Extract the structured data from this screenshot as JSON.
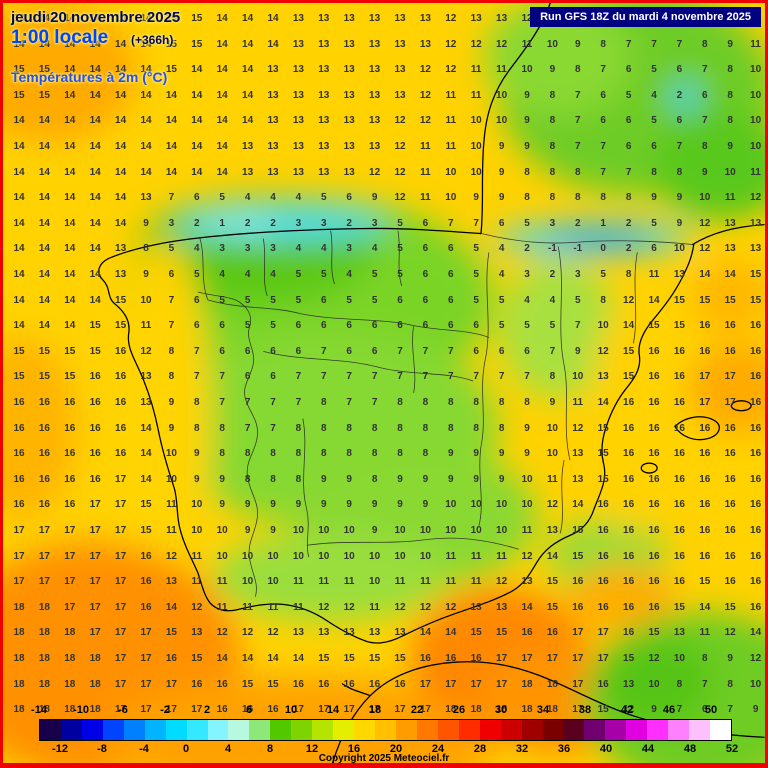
{
  "header": {
    "date_line": "jeudi 20 novembre 2025",
    "time_line": "1:00 locale",
    "forecast_offset": "(+366h)",
    "variable_label": "Températures à 2m (°C)",
    "run_label": "Run GFS 18Z du mardi 4 novembre 2025"
  },
  "footer": {
    "copyright": "Copyright 2025 Meteociel.fr"
  },
  "colors": {
    "frame_border": "#f00000",
    "run_box_bg": "#000080",
    "run_box_text": "#ffffff",
    "base_field_yellow": "#ffd200",
    "cold_green": "#52c800",
    "cold_cyan": "#34e8ff",
    "warm_orange": "#ff9c00",
    "number_text": "#333333",
    "title_navy": "#000a50",
    "title_blue": "#0044ff"
  },
  "map": {
    "scale": {
      "min": -14,
      "max": 52,
      "step": 2,
      "segments": [
        "#16004c",
        "#0000a0",
        "#0000e6",
        "#0044ff",
        "#0080ff",
        "#00b4ff",
        "#00dcff",
        "#34e8ff",
        "#84f4ff",
        "#b6f8e0",
        "#8ce878",
        "#52c800",
        "#7ed400",
        "#b4e400",
        "#e6ee00",
        "#ffd800",
        "#ffc000",
        "#ff9c00",
        "#ff7800",
        "#ff5400",
        "#ff2c00",
        "#f00000",
        "#cc0000",
        "#a00000",
        "#7a0000",
        "#5a001e",
        "#700070",
        "#a800a8",
        "#e000e0",
        "#ff30ff",
        "#ff80ff",
        "#ffc0ff",
        "#ffffff"
      ],
      "top_labels": [
        "-14",
        "-10",
        "-6",
        "-2",
        "2",
        "6",
        "10",
        "14",
        "18",
        "22",
        "26",
        "30",
        "34",
        "38",
        "42",
        "46",
        "50"
      ],
      "bottom_labels": [
        "-12",
        "-8",
        "-4",
        "0",
        "4",
        "8",
        "12",
        "16",
        "20",
        "24",
        "28",
        "32",
        "36",
        "40",
        "44",
        "48",
        "52"
      ]
    },
    "grid_rows": [
      "13 14 14 14 14 14 15 15 14 14 14 13 13 13 13 13 13 12 13 13 12 11 10 9 8 8 8 9 10 12",
      "14 14 14 14 14 14 15 15 14 14 14 13 13 13 13 13 13 12 12 12 11 10 9 8 7 7 7 8 9 11",
      "15 15 14 14 14 14 15 14 14 14 13 13 13 13 13 13 12 12 11 11 10 9 8 7 6 5 6 7 8 10",
      "15 15 14 14 14 14 14 14 14 14 13 13 13 13 13 13 12 11 11 10 9 8 7 6 5 4 2 6 8 10",
      "14 14 14 14 14 14 14 14 14 14 13 13 13 13 13 12 12 11 10 10 9 8 7 6 6 5 6 7 8 10",
      "14 14 14 14 14 14 14 14 14 13 13 13 13 13 13 12 11 11 10 9 9 8 7 7 6 6 7 8 9 10",
      "14 14 14 14 14 14 14 14 14 13 13 13 13 13 12 12 11 10 10 9 8 8 8 7 7 8 8 9 10 11",
      "14 14 14 14 14 13 7 6 5 4 4 4 5 6 9 12 11 10 9 9 8 8 8 8 8 9 9 10 11 12",
      "14 14 14 14 14 9 3 2 1 2 2 3 3 2 3 5 6 7 7 6 5 3 2 1 2 5 9 12 13 13",
      "14 14 14 14 13 8 5 4 3 3 3 4 4 3 4 5 6 6 5 4 2 -1 -1 0 2 6 10 12 13 13",
      "14 14 14 14 13 9 6 5 4 4 4 5 5 4 5 5 6 6 5 4 3 2 3 5 8 11 13 14 14 15",
      "14 14 14 14 15 10 7 6 5 5 5 5 6 5 5 6 6 6 5 5 4 4 5 8 12 14 15 15 15 15",
      "14 14 14 15 15 11 7 6 6 5 5 6 6 6 6 6 6 6 6 5 5 5 7 10 14 15 15 16 16 16",
      "15 15 15 15 16 12 8 7 6 6 6 6 7 6 6 7 7 7 6 6 6 7 9 12 15 16 16 16 16 16",
      "15 15 15 16 16 13 8 7 7 6 6 7 7 7 7 7 7 7 7 7 7 8 10 13 15 16 16 17 17 16",
      "16 16 16 16 16 13 9 8 7 7 7 7 8 7 7 8 8 8 8 8 8 9 11 14 16 16 16 17 17 16",
      "16 16 16 16 16 14 9 8 8 7 7 8 8 8 8 8 8 8 8 8 9 10 12 15 16 16 16 16 16 16",
      "16 16 16 16 16 14 10 9 8 8 8 8 8 8 8 8 8 9 9 9 9 10 13 15 16 16 16 16 16 16",
      "16 16 16 16 17 14 10 9 9 8 8 8 9 9 8 9 9 9 9 9 10 11 13 15 16 16 16 16 16 16",
      "16 16 16 17 17 15 11 10 9 9 9 9 9 9 9 9 9 10 10 10 10 12 14 16 16 16 16 16 16 16",
      "17 17 17 17 17 15 11 10 10 9 9 10 10 10 9 10 10 10 10 10 11 13 15 16 16 16 16 16 16 16",
      "17 17 17 17 17 16 12 11 10 10 10 10 10 10 10 10 10 11 11 11 12 14 15 16 16 16 16 16 16 16",
      "17 17 17 17 17 16 13 11 11 10 10 11 11 11 10 11 11 11 11 12 13 15 16 16 16 16 16 15 16 16",
      "18 18 17 17 17 16 14 12 11 11 11 11 12 12 11 12 12 12 13 13 14 15 16 16 16 16 15 14 15 16",
      "18 18 18 17 17 17 15 13 12 12 12 13 13 13 13 13 14 14 15 15 16 16 17 17 16 15 13 11 12 14",
      "18 18 18 18 17 17 16 15 14 14 14 14 15 15 15 15 16 16 16 17 17 17 17 17 15 12 10 8 9 12",
      "18 18 18 18 17 17 17 16 16 15 15 16 16 16 16 16 17 17 17 17 18 18 17 16 13 10 8 7 8 10",
      "18 18 18 18 17 17 17 17 16 16 16 17 17 17 17 17 17 18 18 18 18 18 17 15 12 9 7 6 7 9"
    ]
  }
}
